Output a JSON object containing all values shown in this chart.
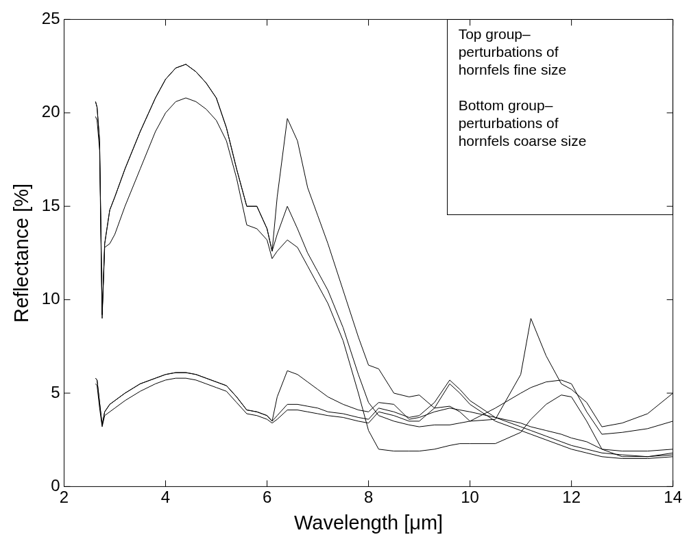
{
  "chart_data": {
    "type": "line",
    "xlabel": "Wavelength [μm]",
    "ylabel": "Reflectance [%]",
    "x": [
      2.62,
      2.65,
      2.7,
      2.75,
      2.8,
      2.9,
      3.0,
      3.2,
      3.5,
      3.8,
      4.0,
      4.2,
      4.4,
      4.6,
      4.8,
      5.0,
      5.2,
      5.4,
      5.6,
      5.8,
      6.0,
      6.1,
      6.2,
      6.4,
      6.6,
      6.8,
      7.0,
      7.2,
      7.5,
      7.8,
      8.0,
      8.2,
      8.5,
      8.8,
      9.0,
      9.3,
      9.6,
      9.8,
      10.0,
      10.5,
      11.0,
      11.2,
      11.5,
      11.8,
      12.0,
      12.3,
      12.6,
      13.0,
      13.5,
      14.0
    ],
    "series": [
      {
        "color": "#000000",
        "values": [
          20.6,
          20.3,
          18.5,
          9.2,
          13.0,
          14.8,
          15.5,
          17.0,
          19.0,
          20.8,
          21.8,
          22.4,
          22.6,
          22.2,
          21.6,
          20.8,
          19.2,
          17.0,
          15.0,
          15.0,
          13.8,
          12.6,
          13.5,
          15.0,
          13.8,
          12.5,
          11.5,
          10.5,
          8.5,
          6.0,
          4.5,
          3.8,
          3.5,
          3.3,
          3.2,
          3.3,
          3.3,
          3.4,
          3.5,
          4.2,
          5.0,
          5.3,
          5.6,
          5.7,
          5.5,
          4.0,
          2.8,
          2.9,
          3.1,
          3.5
        ]
      },
      {
        "color": "#000000",
        "values": [
          19.8,
          19.6,
          18.0,
          9.0,
          12.8,
          13.0,
          13.5,
          15.0,
          17.0,
          19.0,
          20.0,
          20.6,
          20.8,
          20.6,
          20.2,
          19.6,
          18.5,
          16.5,
          14.0,
          13.8,
          13.2,
          12.2,
          12.6,
          13.2,
          12.8,
          11.8,
          10.8,
          9.8,
          7.8,
          5.0,
          3.0,
          2.0,
          1.9,
          1.9,
          1.9,
          2.0,
          2.2,
          2.3,
          2.3,
          2.3,
          2.9,
          3.6,
          4.4,
          4.9,
          4.8,
          3.5,
          2.0,
          1.6,
          1.6,
          1.7
        ]
      },
      {
        "color": "#000000",
        "values": [
          20.6,
          20.3,
          18.5,
          9.2,
          13.0,
          14.8,
          15.5,
          17.0,
          19.0,
          20.8,
          21.8,
          22.4,
          22.6,
          22.2,
          21.6,
          20.8,
          19.2,
          17.0,
          15.0,
          15.0,
          13.8,
          12.6,
          15.5,
          19.7,
          18.5,
          16.0,
          14.5,
          13.0,
          10.5,
          8.0,
          6.5,
          6.3,
          5.0,
          4.8,
          4.9,
          4.2,
          4.3,
          4.0,
          3.5,
          3.6,
          6.0,
          9.0,
          7.0,
          5.5,
          5.2,
          4.5,
          3.2,
          3.4,
          3.9,
          5.0
        ]
      },
      {
        "color": "#000000",
        "values": [
          5.8,
          5.7,
          4.5,
          3.3,
          4.0,
          4.4,
          4.6,
          5.0,
          5.5,
          5.8,
          6.0,
          6.1,
          6.1,
          6.0,
          5.8,
          5.6,
          5.4,
          4.8,
          4.1,
          4.0,
          3.8,
          3.5,
          3.8,
          4.4,
          4.4,
          4.3,
          4.2,
          4.0,
          3.9,
          3.7,
          3.6,
          4.2,
          4.0,
          3.7,
          3.8,
          4.5,
          5.7,
          5.2,
          4.6,
          3.7,
          3.2,
          3.0,
          2.7,
          2.4,
          2.2,
          2.0,
          1.8,
          1.7,
          1.6,
          1.8
        ]
      },
      {
        "color": "#000000",
        "values": [
          5.5,
          5.4,
          4.2,
          3.2,
          3.8,
          4.0,
          4.2,
          4.6,
          5.1,
          5.5,
          5.7,
          5.8,
          5.8,
          5.7,
          5.5,
          5.3,
          5.1,
          4.5,
          3.9,
          3.8,
          3.6,
          3.4,
          3.6,
          4.1,
          4.1,
          4.0,
          3.9,
          3.8,
          3.7,
          3.5,
          3.4,
          4.0,
          3.8,
          3.5,
          3.5,
          4.2,
          5.5,
          5.0,
          4.4,
          3.5,
          3.0,
          2.8,
          2.5,
          2.2,
          2.0,
          1.8,
          1.6,
          1.5,
          1.5,
          1.6
        ]
      },
      {
        "color": "#000000",
        "values": [
          5.8,
          5.7,
          4.5,
          3.3,
          4.0,
          4.4,
          4.6,
          5.0,
          5.5,
          5.8,
          6.0,
          6.1,
          6.1,
          6.0,
          5.8,
          5.6,
          5.4,
          4.8,
          4.1,
          4.0,
          3.8,
          3.5,
          4.8,
          6.2,
          6.0,
          5.6,
          5.2,
          4.8,
          4.4,
          4.1,
          4.0,
          4.5,
          4.4,
          3.6,
          3.7,
          4.0,
          4.2,
          4.1,
          4.0,
          3.7,
          3.4,
          3.2,
          3.0,
          2.8,
          2.6,
          2.4,
          2.0,
          1.9,
          1.9,
          2.0
        ]
      }
    ],
    "xlim": [
      2,
      14
    ],
    "xticks": [
      2,
      4,
      6,
      8,
      10,
      12,
      14
    ],
    "ylim": [
      0,
      25
    ],
    "yticks": [
      0,
      5,
      10,
      15,
      20,
      25
    ],
    "grid": false,
    "legend": false,
    "marker": "none",
    "line_style": "solid",
    "annotations": [
      "Top group– perturbations of hornfels fine size",
      "Bottom group– perturbations of hornfels coarse size"
    ]
  }
}
